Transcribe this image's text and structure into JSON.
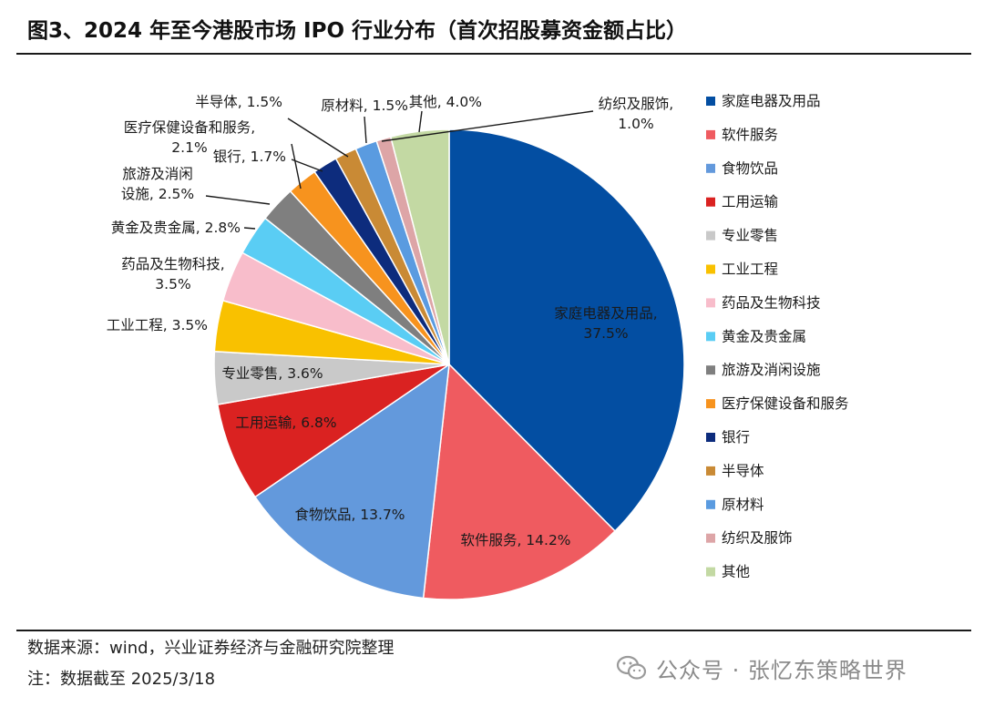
{
  "figure": {
    "title": "图3、2024 年至今港股市场 IPO 行业分布（首次招股募资金额占比）",
    "source": "数据来源：wind，兴业证券经济与金融研究院整理",
    "note": "注：数据截至 2025/3/18",
    "watermark": "公众号 · 张忆东策略世界",
    "watermark_icon": "wechat-icon"
  },
  "chart_data": {
    "type": "pie",
    "title": "",
    "unit": "%",
    "legend_position": "right",
    "start_angle": "12 o'clock",
    "direction": "clockwise",
    "slices": [
      {
        "name": "家庭电器及用品",
        "value": 37.5,
        "color": "#034EA2",
        "label": "家庭电器及用品,",
        "pct": "37.5%"
      },
      {
        "name": "软件服务",
        "value": 14.2,
        "color": "#EF5B60",
        "label": "软件服务, 14.2%"
      },
      {
        "name": "食物饮品",
        "value": 13.7,
        "color": "#6399DC",
        "label": "食物饮品, 13.7%"
      },
      {
        "name": "工用运输",
        "value": 6.8,
        "color": "#DA2221",
        "label": "工用运输, 6.8%"
      },
      {
        "name": "专业零售",
        "value": 3.6,
        "color": "#C9C9C9",
        "label": "专业零售, 3.6%"
      },
      {
        "name": "工业工程",
        "value": 3.5,
        "color": "#F9C100",
        "label": "工业工程, 3.5%"
      },
      {
        "name": "药品及生物科技",
        "value": 3.5,
        "color": "#F8BDCB",
        "label": "药品及生物科技,",
        "pct": "3.5%"
      },
      {
        "name": "黄金及贵金属",
        "value": 2.8,
        "color": "#5ACDF4",
        "label": "黄金及贵金属, 2.8%"
      },
      {
        "name": "旅游及消闲设施",
        "value": 2.5,
        "color": "#7F7F7F",
        "label": "旅游及消闲",
        "pct": "设施, 2.5%"
      },
      {
        "name": "医疗保健设备和服务",
        "value": 2.1,
        "color": "#F7931E",
        "label": "医疗保健设备和服务,",
        "pct": "2.1%"
      },
      {
        "name": "银行",
        "value": 1.7,
        "color": "#0D2C7D",
        "label": "银行, 1.7%"
      },
      {
        "name": "半导体",
        "value": 1.5,
        "color": "#C98A35",
        "label": "半导体, 1.5%"
      },
      {
        "name": "原材料",
        "value": 1.5,
        "color": "#5A9BE0",
        "label": "原材料, 1.5%"
      },
      {
        "name": "纺织及服饰",
        "value": 1.0,
        "color": "#DDA5A7",
        "label": "纺织及服饰,",
        "pct": "1.0%"
      },
      {
        "name": "其他",
        "value": 4.0,
        "color": "#C3D9A3",
        "label": "其他, 4.0%"
      }
    ],
    "legend": [
      "家庭电器及用品",
      "软件服务",
      "食物饮品",
      "工用运输",
      "专业零售",
      "工业工程",
      "药品及生物科技",
      "黄金及贵金属",
      "旅游及消闲设施",
      "医疗保健设备和服务",
      "银行",
      "半导体",
      "原材料",
      "纺织及服饰",
      "其他"
    ]
  }
}
